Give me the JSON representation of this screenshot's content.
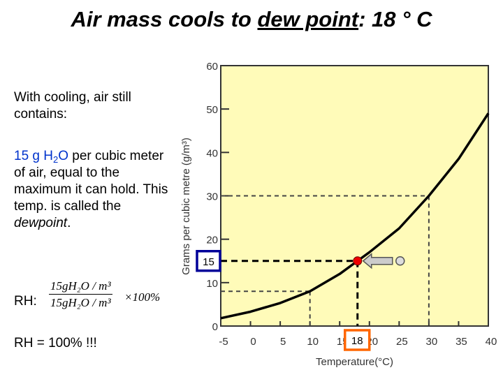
{
  "title": {
    "pre": "Air mass cools to ",
    "underlined": "dew point",
    "post": ": 18 ° C"
  },
  "text": {
    "line1": "With cooling, air still contains:",
    "amount_blue_a": "15 g H",
    "amount_blue_sub": "2",
    "amount_blue_b": "O",
    "amount_rest": " per cubic meter of air, equal to the maximum it can hold. This temp. is called the ",
    "dewpoint_word": "dewpoint",
    "period": ".",
    "rh_label": "RH:",
    "frac_num": "15gH₂O / m³",
    "frac_den": "15gH₂O / m³",
    "times": "×100%",
    "rh_result": "RH = 100% !!!"
  },
  "chart_data": {
    "type": "line",
    "xlabel": "Temperature(°C)",
    "ylabel": "Grams per cubic metre (g/m³)",
    "xlim": [
      -5,
      40
    ],
    "ylim": [
      0,
      60
    ],
    "xticks": [
      -5,
      0,
      5,
      10,
      15,
      20,
      25,
      30,
      35,
      40
    ],
    "yticks": [
      0,
      10,
      20,
      30,
      40,
      50,
      60
    ],
    "grid": false,
    "background": "#fffbb9",
    "series": [
      {
        "x": [
          -5,
          0,
          5,
          10,
          15,
          18,
          20,
          25,
          30,
          35,
          40
        ],
        "y": [
          1.8,
          3.3,
          5.3,
          8,
          12,
          15,
          17,
          22.5,
          30,
          38.5,
          49
        ]
      }
    ],
    "reference_lines": [
      {
        "x": 10,
        "y": 8
      },
      {
        "x": 30,
        "y": 30
      },
      {
        "x": 18,
        "y": 15,
        "bold": true
      }
    ],
    "highlight_point": {
      "x": 18,
      "y": 15,
      "color": "#ee0000"
    },
    "annotations": {
      "y_box": "15",
      "y_box_color": "#000099",
      "x_box": "18",
      "x_box_color": "#ff6600"
    }
  }
}
